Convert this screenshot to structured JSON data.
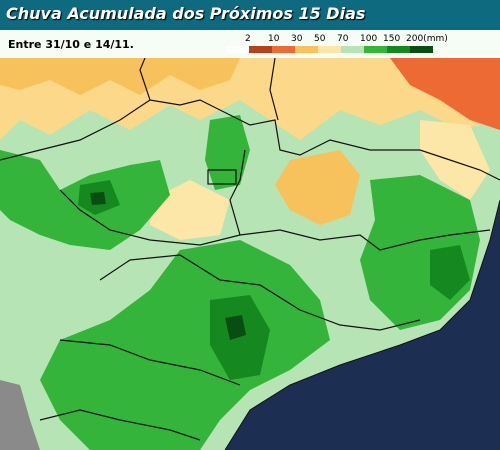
{
  "header": {
    "title": "Chuva Acumulada dos Próximos 15 Dias",
    "subtitle": "Entre 31/10 e 14/11."
  },
  "legend": {
    "labels": [
      "2",
      "10",
      "30",
      "50",
      "70",
      "100",
      "150",
      "200(mm)"
    ],
    "colors": [
      "#ffffff",
      "#b5421d",
      "#ee6a35",
      "#f7c25c",
      "#fde7a8",
      "#b7e4b5",
      "#34b43a",
      "#15891f",
      "#0a4d12"
    ]
  }
}
